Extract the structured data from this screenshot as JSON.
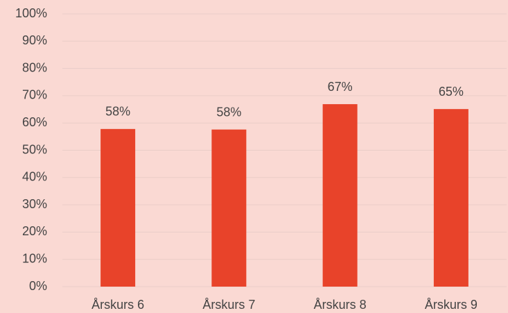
{
  "chart_data": {
    "type": "bar",
    "categories": [
      "Årskurs 6",
      "Årskurs 7",
      "Årskurs 8",
      "Årskurs 9"
    ],
    "values": [
      57.8,
      57.6,
      66.9,
      65.1
    ],
    "value_labels": [
      "58%",
      "58%",
      "67%",
      "65%"
    ],
    "color": "#e8432a",
    "ylim": [
      0,
      100
    ],
    "yticks": [
      {
        "value": 0,
        "label": "0%"
      },
      {
        "value": 10,
        "label": "10%"
      },
      {
        "value": 20,
        "label": "20%"
      },
      {
        "value": 30,
        "label": "30%"
      },
      {
        "value": 40,
        "label": "40%"
      },
      {
        "value": 50,
        "label": "50%"
      },
      {
        "value": 60,
        "label": "60%"
      },
      {
        "value": 70,
        "label": "70%"
      },
      {
        "value": 80,
        "label": "80%"
      },
      {
        "value": 90,
        "label": "90%"
      },
      {
        "value": 100,
        "label": "100%"
      }
    ],
    "grid": true
  }
}
